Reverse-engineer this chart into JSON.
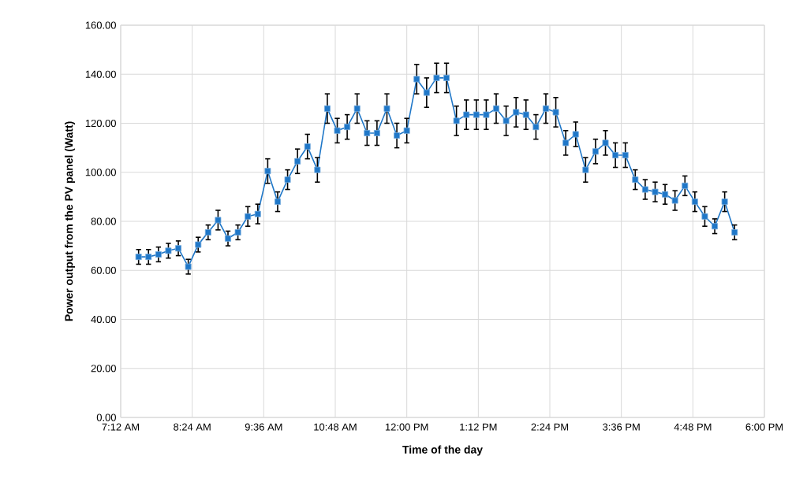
{
  "chart_data": {
    "type": "line",
    "xlabel": "Time of the day",
    "ylabel": "Power output from the PV panel (Watt)",
    "x": [
      7.5,
      7.6667,
      7.8333,
      8.0,
      8.1667,
      8.3333,
      8.5,
      8.6667,
      8.8333,
      9.0,
      9.1667,
      9.3333,
      9.5,
      9.6667,
      9.8333,
      10.0,
      10.1667,
      10.3333,
      10.5,
      10.6667,
      10.8333,
      11.0,
      11.1667,
      11.3333,
      11.5,
      11.6667,
      11.8333,
      12.0,
      12.1667,
      12.3333,
      12.5,
      12.6667,
      12.8333,
      13.0,
      13.1667,
      13.3333,
      13.5,
      13.6667,
      13.8333,
      14.0,
      14.1667,
      14.3333,
      14.5,
      14.6667,
      14.8333,
      15.0,
      15.1667,
      15.3333,
      15.5,
      15.6667,
      15.8333,
      16.0,
      16.1667,
      16.3333,
      16.5,
      16.6667,
      16.8333,
      17.0,
      17.1667,
      17.3333,
      17.5
    ],
    "series": [
      {
        "color": "#1f77c8",
        "values": [
          65.5,
          65.5,
          66.5,
          68,
          69,
          61.5,
          70.5,
          75.5,
          80.5,
          73,
          75.5,
          82,
          83,
          100.5,
          88,
          97,
          104.5,
          110.5,
          101,
          126,
          117,
          118.5,
          126,
          116,
          116,
          126,
          115,
          117,
          138,
          132.5,
          138.5,
          138.5,
          121,
          123.5,
          123.5,
          123.5,
          126,
          121,
          124.5,
          123.5,
          118.5,
          126,
          124.5,
          112,
          115.5,
          101,
          108.5,
          112,
          107,
          107,
          97,
          93,
          92,
          91,
          88.5,
          94.5,
          88,
          82,
          78,
          88,
          75.5
        ],
        "errors": [
          3,
          3,
          3,
          3,
          3,
          3,
          3,
          3,
          4,
          3,
          3,
          4,
          4,
          5,
          4,
          4,
          5,
          5,
          5,
          6,
          5,
          5,
          6,
          5,
          5,
          6,
          5,
          5,
          6,
          6,
          6,
          6,
          6,
          6,
          6,
          6,
          6,
          6,
          6,
          6,
          5,
          6,
          6,
          5,
          5,
          5,
          5,
          5,
          5,
          5,
          4,
          4,
          4,
          4,
          4,
          4,
          4,
          4,
          3,
          4,
          3
        ]
      }
    ],
    "xlim": [
      7.2,
      18.0
    ],
    "xticks": [
      {
        "value": 7.2,
        "label": "7:12 AM"
      },
      {
        "value": 8.4,
        "label": "8:24 AM"
      },
      {
        "value": 9.6,
        "label": "9:36 AM"
      },
      {
        "value": 10.8,
        "label": "10:48 AM"
      },
      {
        "value": 12.0,
        "label": "12:00 PM"
      },
      {
        "value": 13.2,
        "label": "1:12 PM"
      },
      {
        "value": 14.4,
        "label": "2:24 PM"
      },
      {
        "value": 15.6,
        "label": "3:36 PM"
      },
      {
        "value": 16.8,
        "label": "4:48 PM"
      },
      {
        "value": 18.0,
        "label": "6:00 PM"
      }
    ],
    "ylim": [
      0,
      160
    ],
    "yticks": [
      {
        "value": 0,
        "label": "0.00"
      },
      {
        "value": 20,
        "label": "20.00"
      },
      {
        "value": 40,
        "label": "40.00"
      },
      {
        "value": 60,
        "label": "60.00"
      },
      {
        "value": 80,
        "label": "80.00"
      },
      {
        "value": 100,
        "label": "100.00"
      },
      {
        "value": 120,
        "label": "120.00"
      },
      {
        "value": 140,
        "label": "140.00"
      },
      {
        "value": 160,
        "label": "160.00"
      }
    ],
    "grid": true,
    "marker": "square",
    "line_style": "solid"
  }
}
